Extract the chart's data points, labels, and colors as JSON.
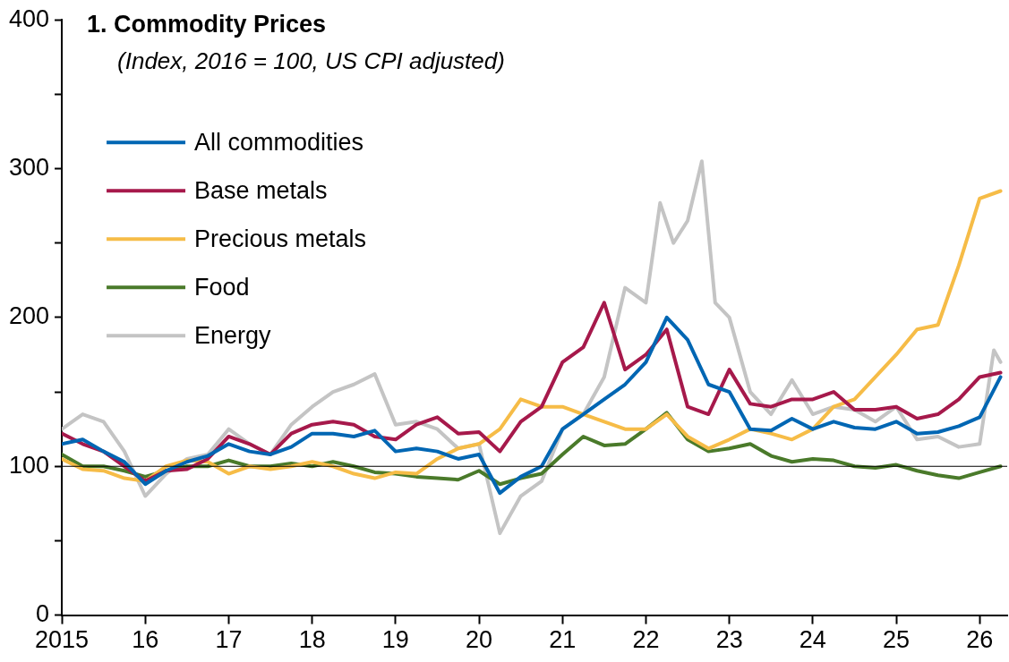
{
  "chart_data": {
    "type": "line",
    "title": "1. Commodity Prices",
    "subtitle": "(Index, 2016 = 100, US CPI adjusted)",
    "x": [
      2015,
      2015.25,
      2015.5,
      2015.75,
      2016,
      2016.25,
      2016.5,
      2016.75,
      2017,
      2017.25,
      2017.5,
      2017.75,
      2018,
      2018.25,
      2018.5,
      2018.75,
      2019,
      2019.25,
      2019.5,
      2019.75,
      2020,
      2020.25,
      2020.5,
      2020.75,
      2021,
      2021.25,
      2021.5,
      2021.75,
      2022,
      2022.25,
      2022.5,
      2022.75,
      2023,
      2023.25,
      2023.5,
      2023.75,
      2024,
      2024.25,
      2024.5,
      2024.75,
      2025,
      2025.25,
      2025.5,
      2025.75,
      2026,
      2026.25
    ],
    "series": [
      {
        "name": "All commodities",
        "color": "#0066b3",
        "values": [
          115,
          118,
          110,
          103,
          88,
          97,
          103,
          107,
          115,
          110,
          108,
          113,
          122,
          122,
          120,
          124,
          110,
          112,
          110,
          105,
          108,
          82,
          93,
          100,
          125,
          135,
          145,
          155,
          170,
          200,
          185,
          155,
          150,
          125,
          124,
          132,
          125,
          130,
          126,
          125,
          130,
          122,
          123,
          127,
          133,
          160
        ]
      },
      {
        "name": "Base metals",
        "color": "#a6194b",
        "values": [
          122,
          115,
          110,
          100,
          90,
          97,
          98,
          105,
          120,
          115,
          108,
          122,
          128,
          130,
          128,
          120,
          118,
          128,
          133,
          122,
          123,
          110,
          130,
          140,
          170,
          180,
          210,
          165,
          175,
          192,
          140,
          135,
          165,
          142,
          140,
          145,
          145,
          150,
          138,
          138,
          140,
          132,
          135,
          145,
          160,
          163
        ]
      },
      {
        "name": "Precious metals",
        "color": "#f6bc47",
        "values": [
          105,
          98,
          97,
          92,
          90,
          100,
          104,
          103,
          95,
          100,
          98,
          100,
          103,
          100,
          95,
          92,
          96,
          95,
          105,
          112,
          115,
          125,
          145,
          140,
          140,
          135,
          130,
          125,
          125,
          135,
          120,
          112,
          118,
          125,
          122,
          118,
          125,
          140,
          145,
          160,
          175,
          192,
          195,
          235,
          280,
          285
        ]
      },
      {
        "name": "Food",
        "color": "#4a7a2a",
        "values": [
          108,
          100,
          100,
          97,
          93,
          97,
          100,
          100,
          104,
          100,
          100,
          102,
          100,
          103,
          100,
          96,
          95,
          93,
          92,
          91,
          97,
          88,
          92,
          95,
          108,
          120,
          114,
          115,
          125,
          136,
          118,
          110,
          112,
          115,
          107,
          103,
          105,
          104,
          100,
          99,
          101,
          97,
          94,
          92,
          96,
          100
        ]
      },
      {
        "name": "Energy",
        "color": "#c4c4c4",
        "x": [
          2015,
          2015.25,
          2015.5,
          2015.75,
          2016,
          2016.25,
          2016.5,
          2016.75,
          2017,
          2017.25,
          2017.5,
          2017.75,
          2018,
          2018.25,
          2018.5,
          2018.75,
          2019,
          2019.25,
          2019.5,
          2019.75,
          2020,
          2020.25,
          2020.5,
          2020.75,
          2021,
          2021.25,
          2021.5,
          2021.75,
          2022,
          2022.17,
          2022.33,
          2022.5,
          2022.67,
          2022.83,
          2023,
          2023.25,
          2023.5,
          2023.75,
          2024,
          2024.25,
          2024.5,
          2024.75,
          2025,
          2025.25,
          2025.5,
          2025.75,
          2026,
          2026.17,
          2026.25
        ],
        "values": [
          125,
          135,
          130,
          110,
          80,
          95,
          105,
          108,
          125,
          115,
          108,
          128,
          140,
          150,
          155,
          162,
          128,
          130,
          125,
          112,
          115,
          55,
          80,
          90,
          125,
          135,
          160,
          220,
          210,
          277,
          250,
          265,
          305,
          210,
          200,
          150,
          135,
          158,
          135,
          140,
          138,
          130,
          140,
          118,
          120,
          113,
          115,
          178,
          170
        ]
      }
    ],
    "xlim": [
      2015,
      2026.33
    ],
    "xticks": [
      {
        "value": 2015,
        "label": "2015"
      },
      {
        "value": 2016,
        "label": "16"
      },
      {
        "value": 2017,
        "label": "17"
      },
      {
        "value": 2018,
        "label": "18"
      },
      {
        "value": 2019,
        "label": "19"
      },
      {
        "value": 2020,
        "label": "20"
      },
      {
        "value": 2021,
        "label": "21"
      },
      {
        "value": 2022,
        "label": "22"
      },
      {
        "value": 2023,
        "label": "23"
      },
      {
        "value": 2024,
        "label": "24"
      },
      {
        "value": 2025,
        "label": "25"
      },
      {
        "value": 2026,
        "label": "26"
      }
    ],
    "ylim": [
      0,
      400
    ],
    "yticks": [
      0,
      {
        "value": 50,
        "label": null
      },
      100,
      {
        "value": 150,
        "label": null
      },
      200,
      {
        "value": 250,
        "label": null
      },
      300,
      {
        "value": 350,
        "label": null
      },
      400
    ],
    "ref_lines": [
      {
        "axis": "y",
        "value": 100,
        "color": "#000000"
      }
    ],
    "legend": "top left",
    "grid": false,
    "marker": "none",
    "line_style": "solid"
  }
}
